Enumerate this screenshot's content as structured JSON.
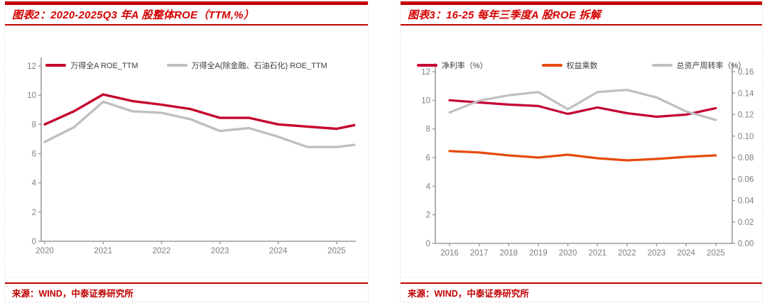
{
  "page": {
    "accent_color": "#C00000",
    "title_color": "#D40000",
    "axis_color": "#9b9b9b",
    "axis_label_color": "#7f7f7f"
  },
  "figures": [
    {
      "source": "来源：WIND，中泰证券研究所"
    },
    {
      "source": "来源：WIND，中泰证券研究所"
    }
  ],
  "chart_data": [
    {
      "type": "line",
      "title": "图表2：2020-2025Q3 年A 股整体ROE（TTM,%）",
      "xlabel": "",
      "ylabel": "",
      "x": [
        2020,
        2020.5,
        2021,
        2021.5,
        2022,
        2022.5,
        2023,
        2023.5,
        2024,
        2024.5,
        2025,
        2025.3
      ],
      "x_ticks": [
        2020,
        2021,
        2022,
        2023,
        2024,
        2025
      ],
      "ylim": [
        0,
        12
      ],
      "y_ticks": [
        0,
        2,
        4,
        6,
        8,
        10,
        12
      ],
      "grid": false,
      "legend_position": "top",
      "series": [
        {
          "name": "万得全A ROE_TTM",
          "color": "#C5032D",
          "axis": "left",
          "values": [
            8.0,
            8.9,
            10.05,
            9.6,
            9.35,
            9.05,
            8.45,
            8.45,
            8.0,
            7.85,
            7.7,
            7.95
          ]
        },
        {
          "name": "万得全A(除金融、石油石化) ROE_TTM",
          "color": "#BFBFBF",
          "axis": "left",
          "values": [
            6.8,
            7.8,
            9.55,
            8.9,
            8.8,
            8.35,
            7.55,
            7.75,
            7.15,
            6.45,
            6.45,
            6.6
          ]
        }
      ]
    },
    {
      "type": "line",
      "title": "图表3：16-25 每年三季度A 股ROE 拆解",
      "xlabel": "",
      "ylabel": "",
      "x": [
        2016,
        2017,
        2018,
        2019,
        2020,
        2021,
        2022,
        2023,
        2024,
        2025
      ],
      "x_ticks": [
        2016,
        2017,
        2018,
        2019,
        2020,
        2021,
        2022,
        2023,
        2024,
        2025
      ],
      "ylim": [
        0,
        12
      ],
      "y_ticks": [
        0,
        2,
        4,
        6,
        8,
        10,
        12
      ],
      "y2lim": [
        0,
        0.16
      ],
      "y2_ticks": [
        "0.00",
        "0.02",
        "0.04",
        "0.06",
        "0.08",
        "0.10",
        "0.12",
        "0.14",
        "0.16"
      ],
      "grid": false,
      "legend_position": "top",
      "series": [
        {
          "name": "净利率（%）",
          "color": "#C40233",
          "axis": "left",
          "values": [
            10.0,
            9.85,
            9.7,
            9.6,
            9.05,
            9.5,
            9.1,
            8.85,
            9.0,
            9.45
          ]
        },
        {
          "name": "权益乘数",
          "color": "#E64A0C",
          "axis": "left",
          "values": [
            6.45,
            6.35,
            6.15,
            6.0,
            6.2,
            5.95,
            5.8,
            5.9,
            6.05,
            6.15
          ]
        },
        {
          "name": "总资产周转率（%）",
          "color": "#BFBFBF",
          "axis": "right",
          "values": [
            0.122,
            0.133,
            0.138,
            0.141,
            0.125,
            0.141,
            0.143,
            0.136,
            0.123,
            0.115
          ]
        }
      ]
    }
  ]
}
